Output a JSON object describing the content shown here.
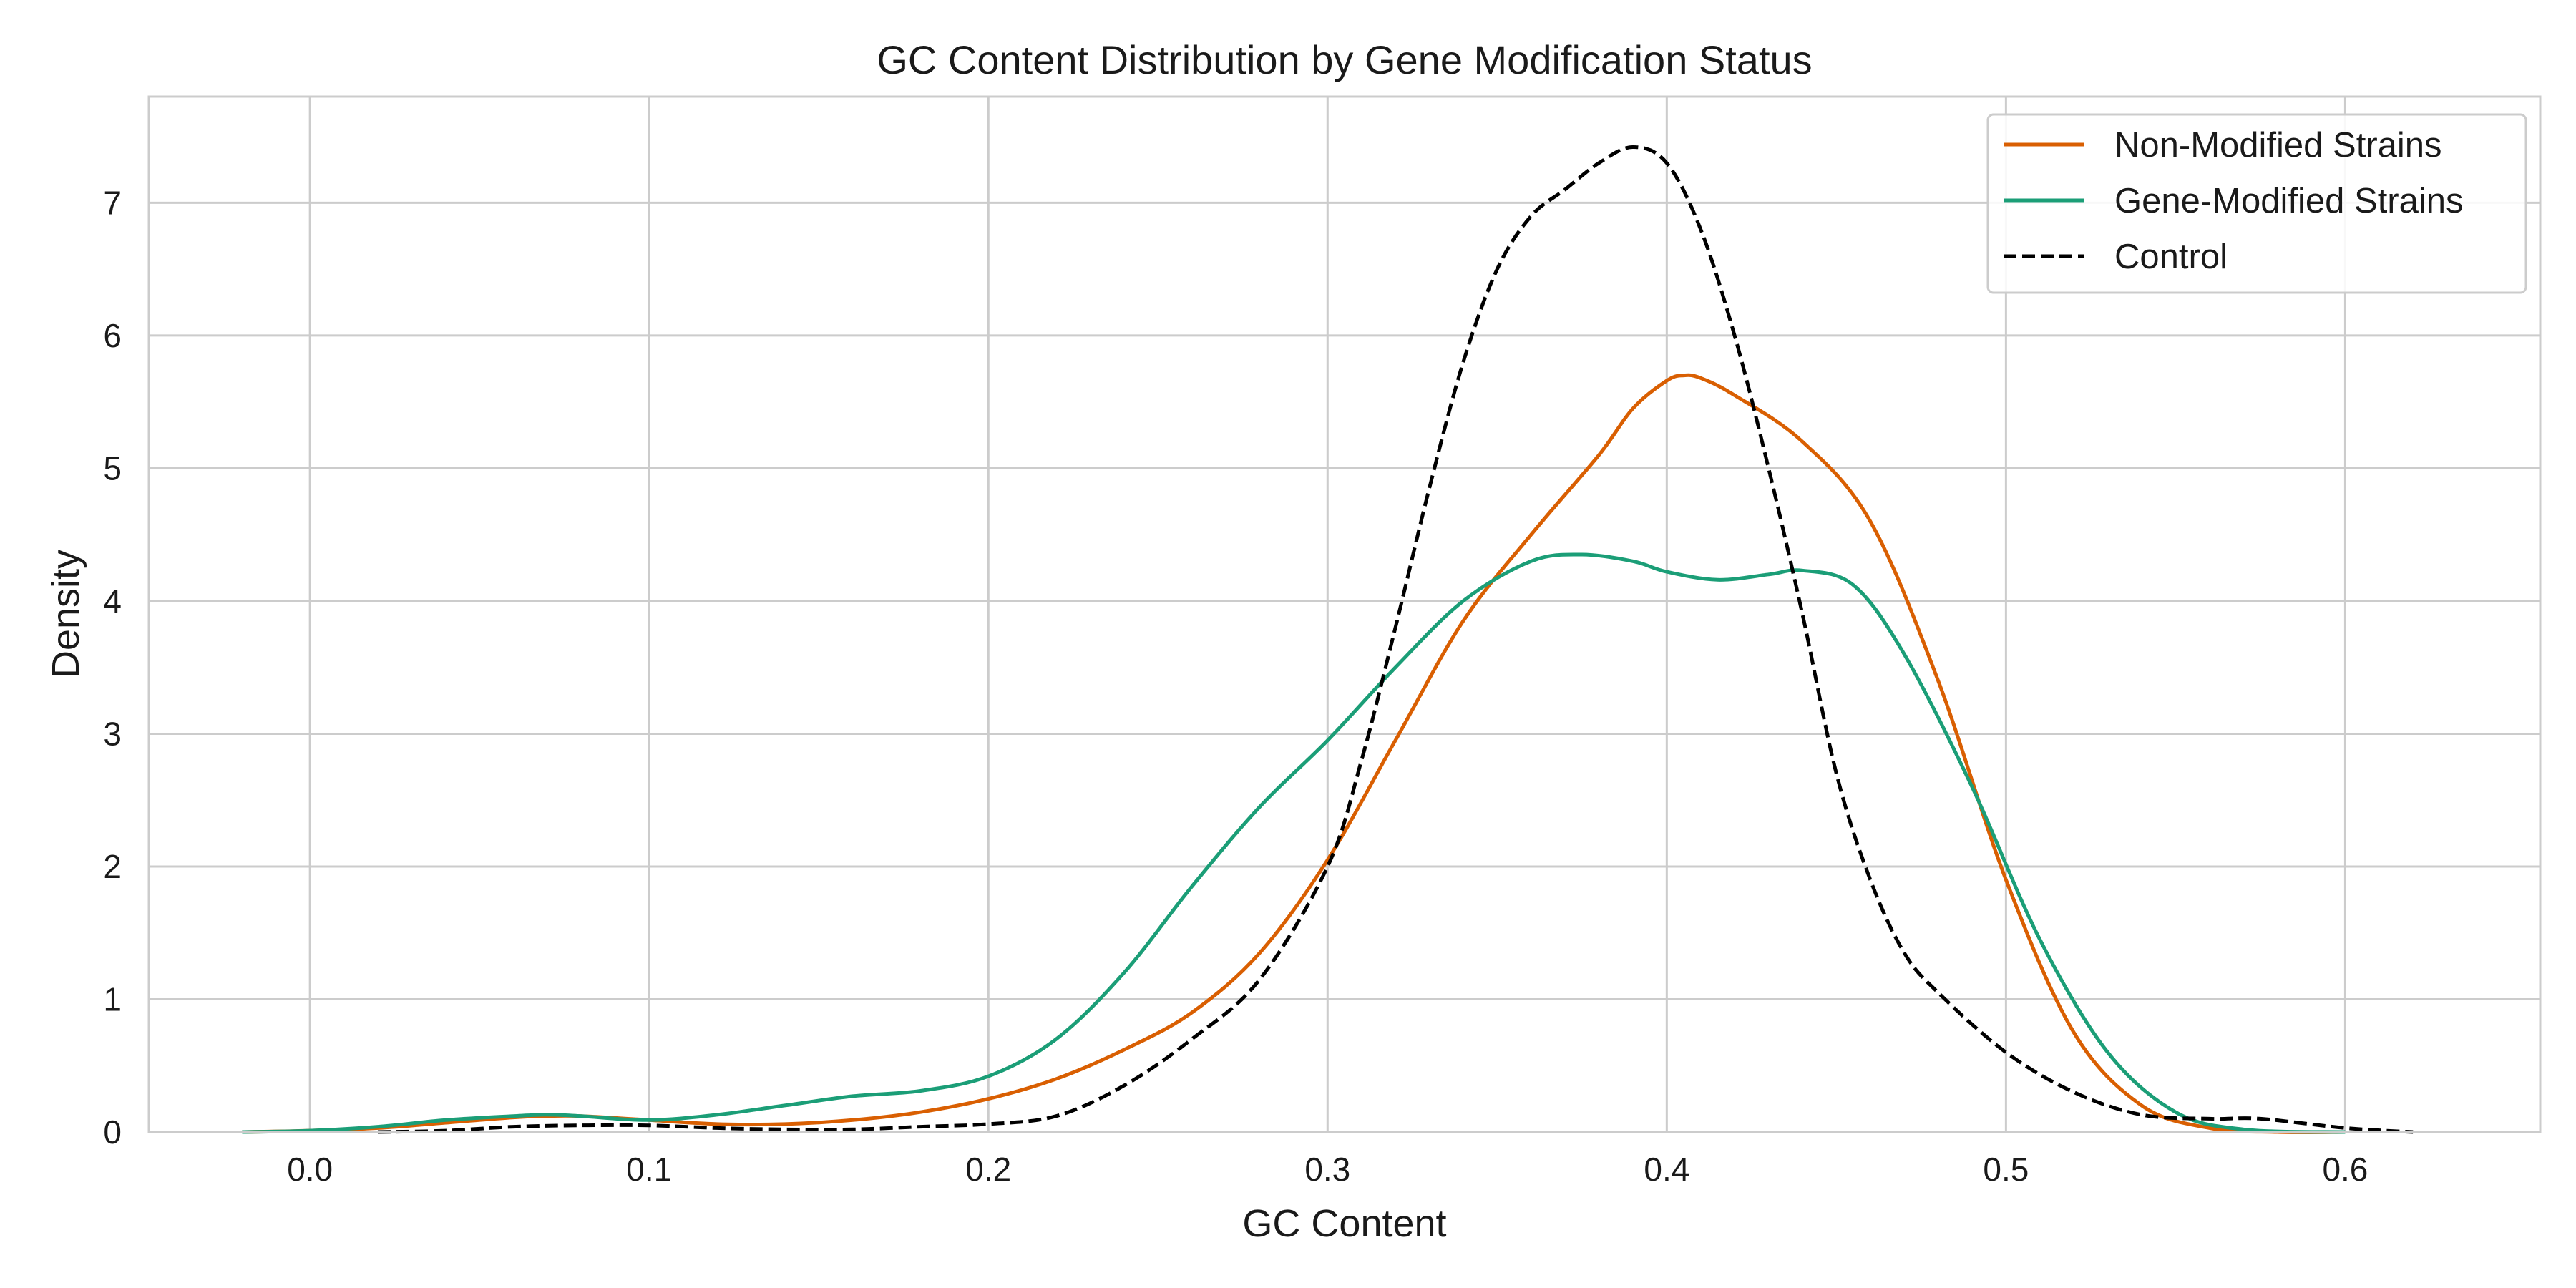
{
  "chart_data": {
    "type": "line",
    "title": "GC Content Distribution by Gene Modification Status",
    "xlabel": "GC Content",
    "ylabel": "Density",
    "xlim": [
      -0.0475,
      0.6575
    ],
    "ylim": [
      0,
      7.8
    ],
    "xticks": [
      0.0,
      0.1,
      0.2,
      0.3,
      0.4,
      0.5,
      0.6
    ],
    "xtick_labels": [
      "0.0",
      "0.1",
      "0.2",
      "0.3",
      "0.4",
      "0.5",
      "0.6"
    ],
    "yticks": [
      0,
      1,
      2,
      3,
      4,
      5,
      6,
      7
    ],
    "ytick_labels": [
      "0",
      "1",
      "2",
      "3",
      "4",
      "5",
      "6",
      "7"
    ],
    "grid": true,
    "legend_position": "top-right",
    "series": [
      {
        "name": "Non-Modified Strains",
        "color": "#d95f02",
        "dash": "solid",
        "points": [
          [
            -0.02,
            0.0
          ],
          [
            0.0,
            0.01
          ],
          [
            0.02,
            0.03
          ],
          [
            0.04,
            0.07
          ],
          [
            0.06,
            0.11
          ],
          [
            0.07,
            0.12
          ],
          [
            0.08,
            0.12
          ],
          [
            0.1,
            0.09
          ],
          [
            0.12,
            0.06
          ],
          [
            0.14,
            0.06
          ],
          [
            0.16,
            0.09
          ],
          [
            0.18,
            0.15
          ],
          [
            0.2,
            0.25
          ],
          [
            0.22,
            0.4
          ],
          [
            0.24,
            0.62
          ],
          [
            0.26,
            0.9
          ],
          [
            0.28,
            1.35
          ],
          [
            0.3,
            2.05
          ],
          [
            0.32,
            2.95
          ],
          [
            0.34,
            3.85
          ],
          [
            0.36,
            4.5
          ],
          [
            0.38,
            5.1
          ],
          [
            0.39,
            5.45
          ],
          [
            0.4,
            5.66
          ],
          [
            0.405,
            5.7
          ],
          [
            0.41,
            5.68
          ],
          [
            0.42,
            5.55
          ],
          [
            0.44,
            5.2
          ],
          [
            0.46,
            4.6
          ],
          [
            0.48,
            3.4
          ],
          [
            0.5,
            1.9
          ],
          [
            0.52,
            0.75
          ],
          [
            0.54,
            0.2
          ],
          [
            0.56,
            0.03
          ],
          [
            0.58,
            0.0
          ],
          [
            0.6,
            0.0
          ]
        ]
      },
      {
        "name": "Gene-Modified Strains",
        "color": "#1b9e77",
        "dash": "solid",
        "points": [
          [
            -0.02,
            0.0
          ],
          [
            0.0,
            0.01
          ],
          [
            0.02,
            0.04
          ],
          [
            0.04,
            0.09
          ],
          [
            0.06,
            0.12
          ],
          [
            0.07,
            0.13
          ],
          [
            0.08,
            0.12
          ],
          [
            0.1,
            0.09
          ],
          [
            0.12,
            0.13
          ],
          [
            0.14,
            0.2
          ],
          [
            0.16,
            0.27
          ],
          [
            0.18,
            0.31
          ],
          [
            0.2,
            0.42
          ],
          [
            0.22,
            0.7
          ],
          [
            0.24,
            1.2
          ],
          [
            0.26,
            1.85
          ],
          [
            0.28,
            2.45
          ],
          [
            0.3,
            2.95
          ],
          [
            0.32,
            3.5
          ],
          [
            0.34,
            4.0
          ],
          [
            0.36,
            4.3
          ],
          [
            0.375,
            4.35
          ],
          [
            0.39,
            4.3
          ],
          [
            0.4,
            4.22
          ],
          [
            0.415,
            4.16
          ],
          [
            0.43,
            4.2
          ],
          [
            0.44,
            4.23
          ],
          [
            0.455,
            4.12
          ],
          [
            0.47,
            3.6
          ],
          [
            0.49,
            2.6
          ],
          [
            0.51,
            1.45
          ],
          [
            0.53,
            0.6
          ],
          [
            0.55,
            0.15
          ],
          [
            0.57,
            0.02
          ],
          [
            0.6,
            0.0
          ]
        ]
      },
      {
        "name": "Control",
        "color": "#000000",
        "dash": "dashed",
        "points": [
          [
            0.02,
            0.0
          ],
          [
            0.04,
            0.01
          ],
          [
            0.06,
            0.04
          ],
          [
            0.08,
            0.05
          ],
          [
            0.1,
            0.05
          ],
          [
            0.12,
            0.03
          ],
          [
            0.14,
            0.02
          ],
          [
            0.16,
            0.02
          ],
          [
            0.18,
            0.04
          ],
          [
            0.2,
            0.06
          ],
          [
            0.22,
            0.12
          ],
          [
            0.24,
            0.35
          ],
          [
            0.26,
            0.7
          ],
          [
            0.28,
            1.15
          ],
          [
            0.3,
            2.0
          ],
          [
            0.31,
            2.8
          ],
          [
            0.32,
            3.8
          ],
          [
            0.33,
            4.85
          ],
          [
            0.34,
            5.8
          ],
          [
            0.35,
            6.5
          ],
          [
            0.36,
            6.9
          ],
          [
            0.37,
            7.1
          ],
          [
            0.38,
            7.3
          ],
          [
            0.39,
            7.42
          ],
          [
            0.4,
            7.3
          ],
          [
            0.41,
            6.8
          ],
          [
            0.42,
            6.0
          ],
          [
            0.43,
            5.0
          ],
          [
            0.44,
            3.9
          ],
          [
            0.45,
            2.7
          ],
          [
            0.46,
            1.9
          ],
          [
            0.47,
            1.35
          ],
          [
            0.48,
            1.05
          ],
          [
            0.5,
            0.6
          ],
          [
            0.52,
            0.3
          ],
          [
            0.54,
            0.13
          ],
          [
            0.56,
            0.1
          ],
          [
            0.575,
            0.1
          ],
          [
            0.6,
            0.03
          ],
          [
            0.62,
            0.0
          ]
        ]
      }
    ]
  }
}
